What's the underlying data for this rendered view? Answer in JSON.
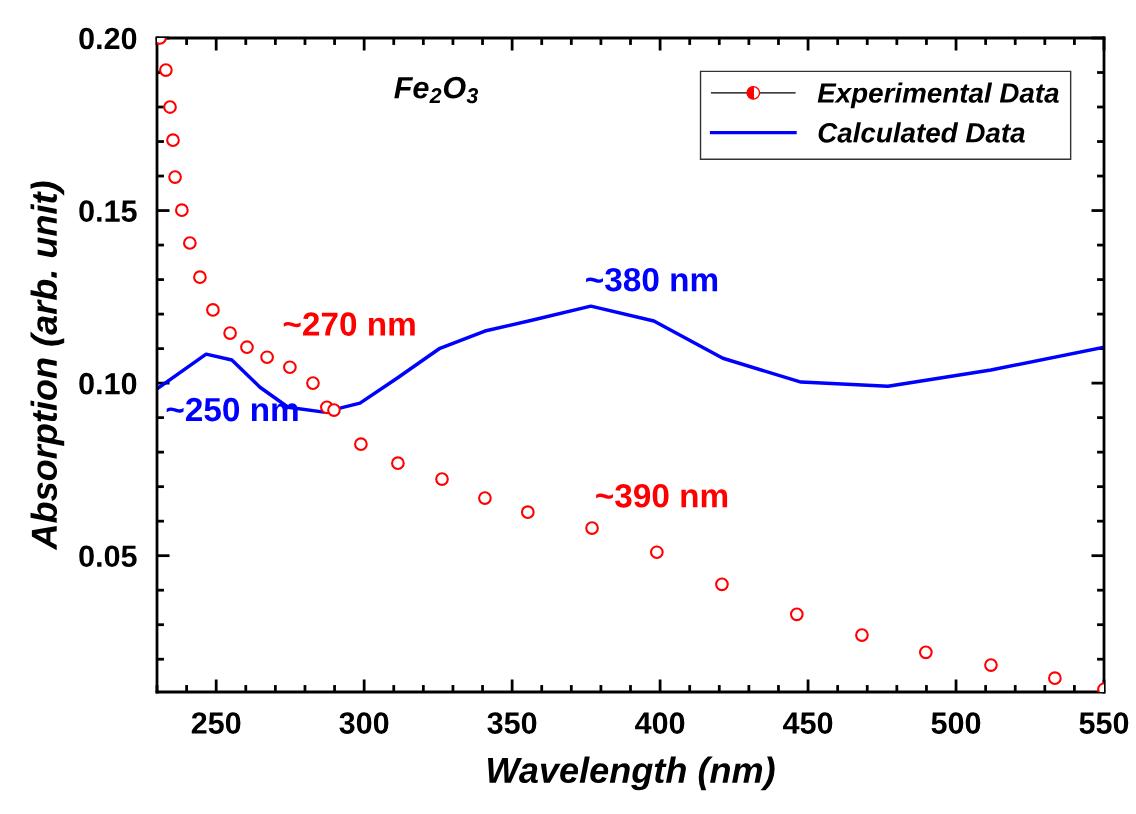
{
  "chart_data": {
    "type": "line",
    "title": "Fe$_{2}$O$_{3}$",
    "xlabel": "Wavelength (nm)",
    "ylabel": "Absorption (arb. unit)",
    "series": [
      {
        "name": "Experimental Data",
        "type": "scatter",
        "color": "#ff0000",
        "marker": "circle",
        "x": [
          231.0,
          233.0,
          234.4,
          235.4,
          236.1,
          238.4,
          241.1,
          244.5,
          248.9,
          254.7,
          260.4,
          267.2,
          274.9,
          282.7,
          287.4,
          289.8,
          298.9,
          311.4,
          326.3,
          340.8,
          355.3,
          377.0,
          398.9,
          420.9,
          446.2,
          468.2,
          489.8,
          511.8,
          533.4,
          550.0
        ],
        "values": [
          0.2,
          0.1907,
          0.18,
          0.1704,
          0.1597,
          0.1501,
          0.1406,
          0.1307,
          0.1212,
          0.1145,
          0.1104,
          0.1075,
          0.1046,
          0.1,
          0.093,
          0.0922,
          0.0823,
          0.0768,
          0.0722,
          0.0667,
          0.0626,
          0.058,
          0.051,
          0.0417,
          0.033,
          0.027,
          0.022,
          0.0183,
          0.0145,
          0.0113
        ]
      },
      {
        "name": "Calculated Data",
        "color": "#0000ff",
        "marker": "none",
        "line_style": "solid",
        "x": [
          230,
          246.6,
          255.3,
          264.8,
          274.3,
          286.4,
          298.6,
          311.1,
          325.6,
          340.8,
          357.0,
          376.6,
          397.9,
          421.2,
          447.6,
          477.0,
          511.8,
          550
        ],
        "values": [
          0.0983,
          0.1084,
          0.1067,
          0.0988,
          0.093,
          0.0916,
          0.0942,
          0.1014,
          0.1101,
          0.1151,
          0.1183,
          0.1223,
          0.118,
          0.1072,
          0.1003,
          0.0991,
          0.1038,
          0.1104
        ]
      }
    ],
    "annotations": [
      {
        "text": "~250 nm",
        "x": 246.6,
        "y": 0.1084
      },
      {
        "text": "~270 nm",
        "x": 274.9,
        "y": 0.1046
      },
      {
        "text": "~380 nm",
        "x": 376.6,
        "y": 0.1223
      },
      {
        "text": "~390 nm",
        "x": 377.0,
        "y": 0.058
      }
    ],
    "xlim": [
      230,
      550
    ],
    "xticks": [
      250,
      300,
      350,
      400,
      450,
      500,
      550
    ],
    "ylim": [
      0.0105,
      0.2
    ],
    "yticks": [
      {
        "value": 0.05,
        "label": "0.05"
      },
      {
        "value": 0.1,
        "label": "0.10"
      },
      {
        "value": 0.15,
        "label": "0.15"
      },
      {
        "value": 0.2,
        "label": "0.20"
      }
    ],
    "legend": "top right",
    "grid": false
  }
}
